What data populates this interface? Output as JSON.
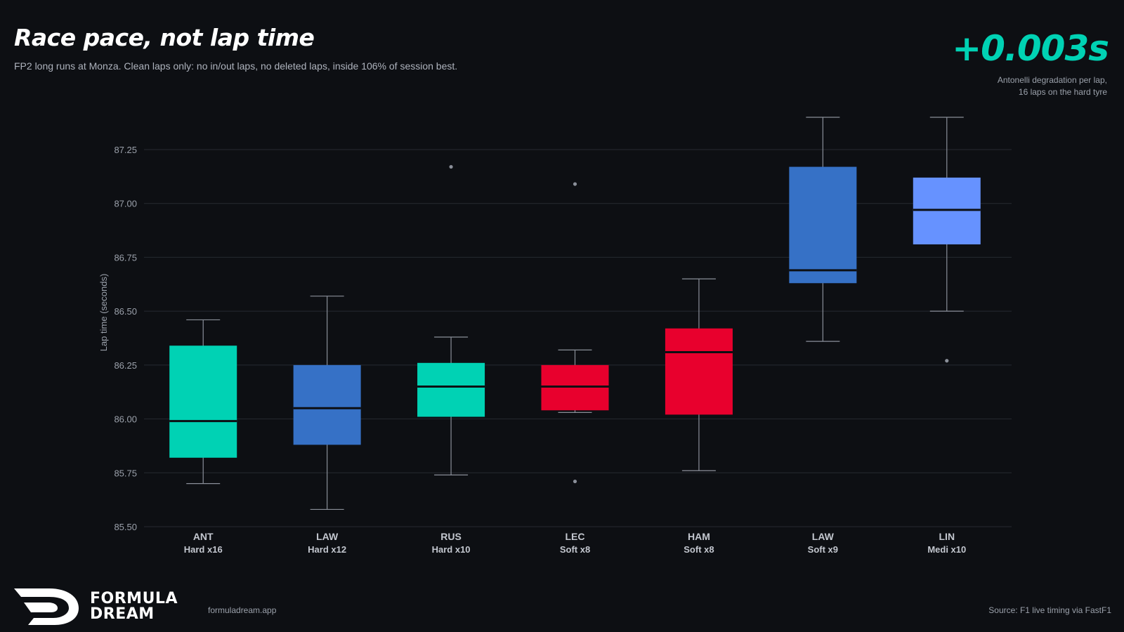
{
  "header": {
    "title": "Race pace, not lap time",
    "subtitle": "FP2 long runs at Monza. Clean laps only: no in/out laps, no deleted laps, inside 106% of session best."
  },
  "highlight": {
    "value": "+0.003s",
    "note_line1": "Antonelli degradation per lap,",
    "note_line2": "16 laps on the hard tyre"
  },
  "footer": {
    "brand_line1": "FORMULA",
    "brand_line2": "DREAM",
    "site": "formuladream.app",
    "source": "Source: F1 live timing via FastF1"
  },
  "colors": {
    "background": "#0d0f13",
    "teal": "#00d2b4",
    "blue": "#3671c6",
    "red": "#e8002d",
    "light_blue": "#6692ff"
  },
  "chart_data": {
    "type": "box",
    "ylabel": "Lap time (seconds)",
    "xlabel": "",
    "ylim": [
      85.5,
      87.5
    ],
    "yticks": [
      85.5,
      85.75,
      86.0,
      86.25,
      86.5,
      86.75,
      87.0,
      87.25
    ],
    "ytick_labels": [
      "85.50",
      "85.75",
      "86.00",
      "86.25",
      "86.50",
      "86.75",
      "87.00",
      "87.25"
    ],
    "grid": true,
    "categories": [
      {
        "driver": "ANT",
        "tyre": "Hard x16",
        "color": "#00d2b4",
        "whisker_low": 85.7,
        "q1": 85.82,
        "median": 85.99,
        "q3": 86.34,
        "whisker_high": 86.46,
        "outliers": []
      },
      {
        "driver": "LAW",
        "tyre": "Hard x12",
        "color": "#3671c6",
        "whisker_low": 85.58,
        "q1": 85.88,
        "median": 86.05,
        "q3": 86.25,
        "whisker_high": 86.57,
        "outliers": []
      },
      {
        "driver": "RUS",
        "tyre": "Hard x10",
        "color": "#00d2b4",
        "whisker_low": 85.74,
        "q1": 86.01,
        "median": 86.15,
        "q3": 86.26,
        "whisker_high": 86.38,
        "outliers": [
          87.17
        ]
      },
      {
        "driver": "LEC",
        "tyre": "Soft x8",
        "color": "#e8002d",
        "whisker_low": 86.03,
        "q1": 86.04,
        "median": 86.15,
        "q3": 86.25,
        "whisker_high": 86.32,
        "outliers": [
          87.09,
          85.71
        ]
      },
      {
        "driver": "HAM",
        "tyre": "Soft x8",
        "color": "#e8002d",
        "whisker_low": 85.76,
        "q1": 86.02,
        "median": 86.31,
        "q3": 86.42,
        "whisker_high": 86.65,
        "outliers": []
      },
      {
        "driver": "LAW",
        "tyre": "Soft x9",
        "color": "#3671c6",
        "whisker_low": 86.36,
        "q1": 86.63,
        "median": 86.69,
        "q3": 87.17,
        "whisker_high": 87.4,
        "outliers": []
      },
      {
        "driver": "LIN",
        "tyre": "Medi x10",
        "color": "#6692ff",
        "whisker_low": 86.5,
        "q1": 86.81,
        "median": 86.97,
        "q3": 87.12,
        "whisker_high": 87.4,
        "outliers": [
          86.27
        ]
      }
    ]
  }
}
